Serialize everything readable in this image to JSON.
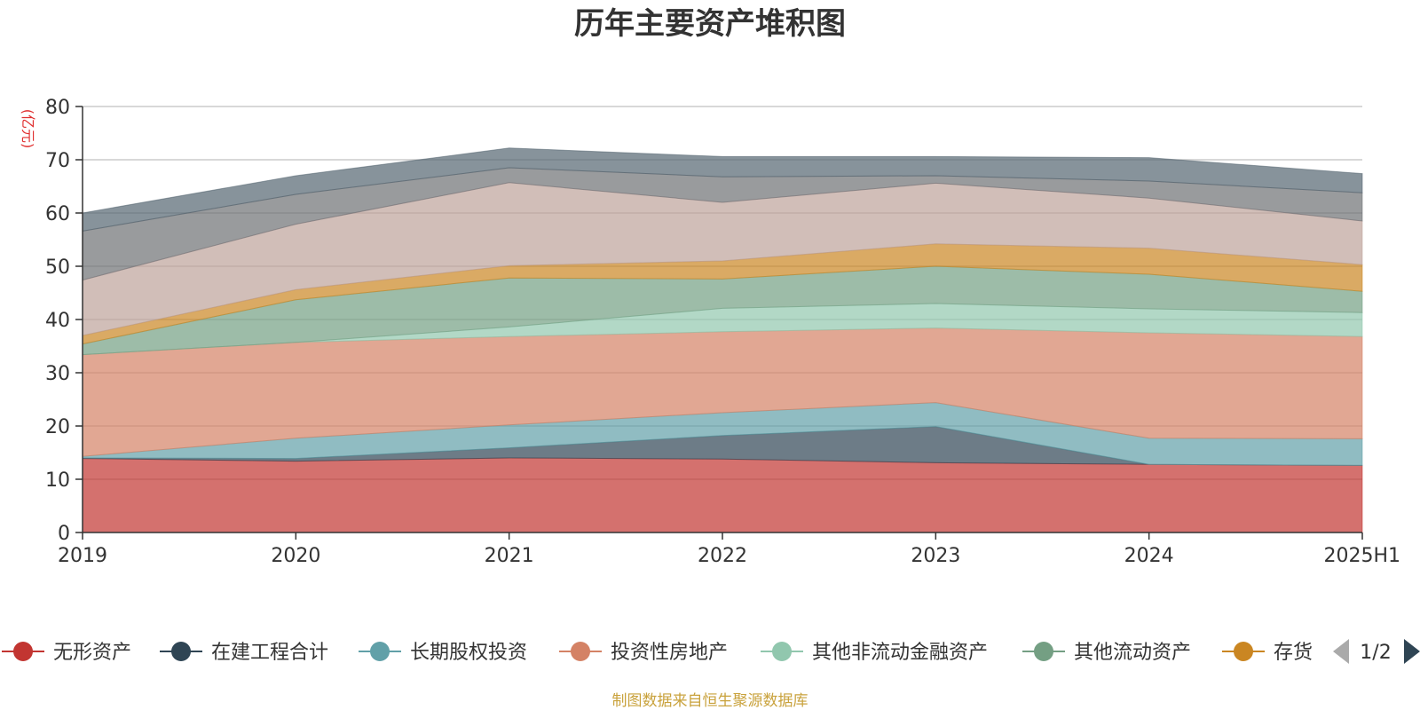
{
  "chart_data": {
    "type": "area",
    "stacked": true,
    "title": "历年主要资产堆积图",
    "ylabel": "(亿元)",
    "xlabel": "",
    "categories": [
      "2019",
      "2020",
      "2021",
      "2022",
      "2023",
      "2024",
      "2025H1"
    ],
    "ylim": [
      0,
      80
    ],
    "yticks": [
      0,
      10,
      20,
      30,
      40,
      50,
      60,
      70,
      80
    ],
    "grid": true,
    "legend_position": "bottom",
    "series": [
      {
        "name": "无形资产",
        "color": "#c23531",
        "values": [
          13.9,
          13.4,
          14.0,
          13.8,
          13.1,
          12.8,
          12.6
        ]
      },
      {
        "name": "在建工程合计",
        "color": "#2f4554",
        "values": [
          0.1,
          0.5,
          1.9,
          4.4,
          6.8,
          0.0,
          0.0
        ]
      },
      {
        "name": "长期股权投资",
        "color": "#61a0a8",
        "values": [
          0.3,
          3.8,
          4.3,
          4.3,
          4.5,
          4.9,
          5.0
        ]
      },
      {
        "name": "投资性房地产",
        "color": "#d48265",
        "values": [
          19.1,
          18.0,
          16.6,
          15.2,
          14.0,
          19.8,
          19.2
        ]
      },
      {
        "name": "其他非流动金融资产",
        "color": "#91c7ae",
        "values": [
          0.0,
          0.0,
          1.8,
          4.4,
          4.6,
          4.5,
          4.5
        ]
      },
      {
        "name": "其他流动资产",
        "color": "#749f83",
        "values": [
          2.0,
          8.0,
          9.2,
          5.5,
          7.0,
          6.5,
          4.0
        ]
      },
      {
        "name": "存货",
        "color": "#ca8622",
        "values": [
          1.6,
          1.9,
          2.3,
          3.4,
          4.2,
          4.9,
          5.0
        ]
      },
      {
        "name": "",
        "color": "#bda29a",
        "values": [
          10.4,
          12.3,
          15.6,
          11.0,
          11.4,
          9.4,
          8.2
        ]
      },
      {
        "name": "",
        "color": "#6e7074",
        "values": [
          9.2,
          5.6,
          2.8,
          4.8,
          1.4,
          3.2,
          5.3
        ]
      },
      {
        "name": "",
        "color": "#546570",
        "values": [
          3.4,
          3.5,
          3.7,
          3.8,
          3.6,
          4.4,
          3.6
        ]
      }
    ],
    "legend": {
      "items_shown": [
        "无形资产",
        "在建工程合计",
        "长期股权投资",
        "投资性房地产",
        "其他非流动金融资产",
        "其他流动资产",
        "存货"
      ],
      "page_indicator": "1/2"
    },
    "source_note": "制图数据来自恒生聚源数据库"
  }
}
